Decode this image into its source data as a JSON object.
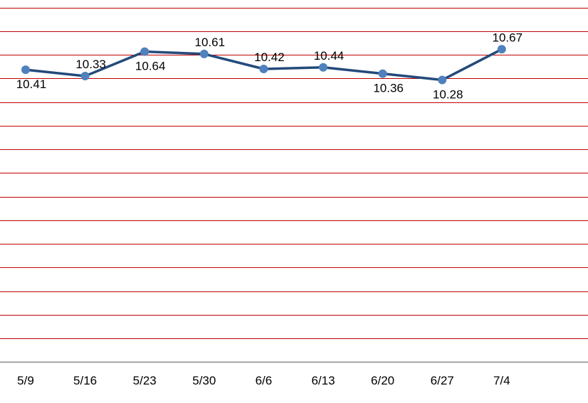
{
  "chart_data": {
    "type": "line",
    "title": "",
    "xlabel": "",
    "ylabel": "",
    "categories": [
      "5/9",
      "5/16",
      "5/23",
      "5/30",
      "6/6",
      "6/13",
      "6/20",
      "6/27",
      "7/4"
    ],
    "series": [
      {
        "values": [
          10.41,
          10.33,
          10.64,
          10.61,
          10.42,
          10.44,
          10.36,
          10.28,
          10.67
        ],
        "color": "#244a7b",
        "marker_color": "#4f81bd"
      }
    ],
    "data_labels": [
      "10.41",
      "10.33",
      "10.64",
      "10.61",
      "10.42",
      "10.44",
      "10.36",
      "10.28",
      "10.67"
    ],
    "data_label_positions": [
      "below",
      "above",
      "below",
      "above",
      "above",
      "above",
      "below",
      "below",
      "above"
    ],
    "ylim": [
      6.7,
      11.2
    ],
    "y_gridline_step": 0.3,
    "grid": true,
    "gridline_color": "#c00000",
    "axis_color": "#878787",
    "legend": "none"
  }
}
